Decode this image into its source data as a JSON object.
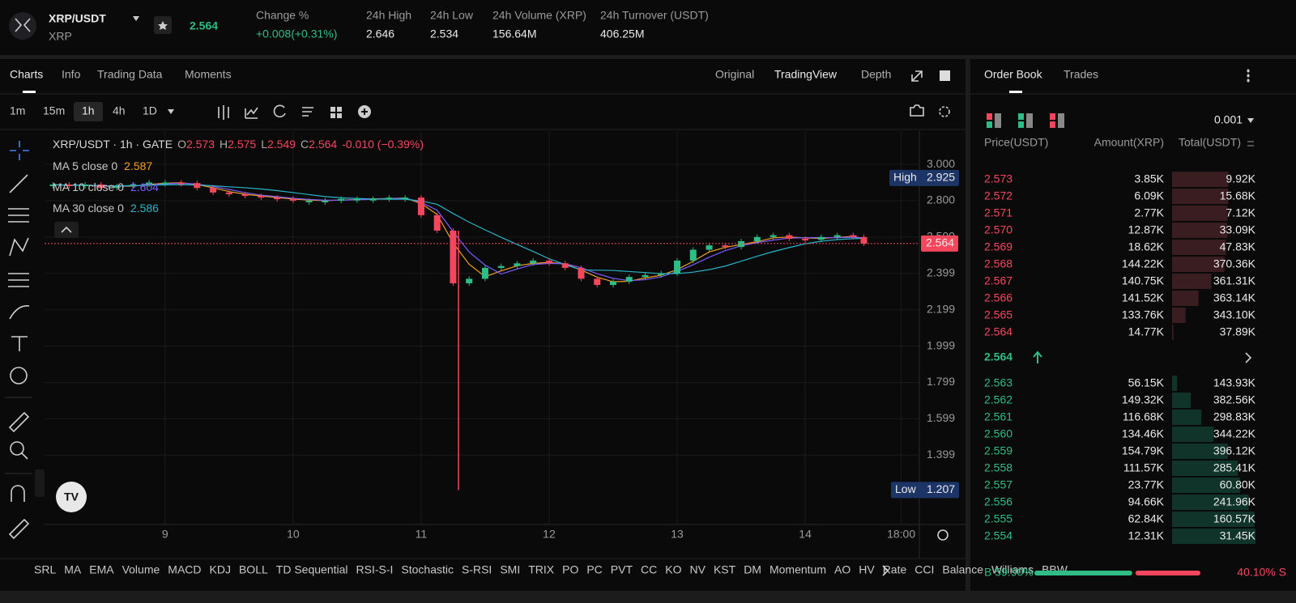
{
  "header": {
    "symbol": "XRP/USDT",
    "base": "XRP",
    "last_price": "2.564",
    "stats": [
      {
        "label": "Change %",
        "value": "+0.008(+0.31%)"
      },
      {
        "label": "24h High",
        "value": "2.646"
      },
      {
        "label": "24h Low",
        "value": "2.534"
      },
      {
        "label": "24h Volume (XRP)",
        "value": "156.64M"
      },
      {
        "label": "24h Turnover (USDT)",
        "value": "406.25M"
      }
    ]
  },
  "tabs": [
    "Charts",
    "Info",
    "Trading Data",
    "Moments"
  ],
  "views": [
    "Original",
    "TradingView",
    "Depth"
  ],
  "timeframes": [
    "1m",
    "15m",
    "1h",
    "4h",
    "1D"
  ],
  "chart_data": {
    "type": "candlestick",
    "legend": {
      "title": "XRP/USDT · 1h · GATE",
      "o": "O",
      "o_value": "2.573",
      "h": "H",
      "h_value": "2.575",
      "l": "L",
      "l_value": "2.549",
      "c": "C",
      "c_value": "2.564",
      "change": "-0.010 (−0.39%)"
    },
    "ma": [
      {
        "name": "MA 5 close 0",
        "value": "2.587",
        "color": "#f0a020"
      },
      {
        "name": "MA 10 close 0",
        "value": "2.604",
        "color": "#7b5cff"
      },
      {
        "name": "MA 30 close 0",
        "value": "2.586",
        "color": "#28b5c8"
      }
    ],
    "x": [
      -21,
      -18,
      -15,
      -12,
      -9,
      -6,
      -3,
      0,
      3,
      6,
      9,
      12,
      15,
      18,
      21,
      24,
      27,
      30,
      33,
      36,
      39,
      42,
      45,
      48,
      51,
      54,
      57,
      60,
      63,
      66,
      69,
      72,
      75,
      78,
      81,
      84,
      87,
      90,
      93,
      96,
      99,
      102,
      105,
      108,
      111,
      114,
      117,
      120,
      123,
      126,
      129,
      131
    ],
    "values": [
      2.889,
      2.88,
      2.889,
      2.87,
      2.88,
      2.889,
      2.9,
      2.9,
      2.897,
      2.87,
      2.845,
      2.835,
      2.826,
      2.817,
      2.81,
      2.8,
      2.8,
      2.8,
      2.81,
      2.81,
      2.81,
      2.817,
      2.817,
      2.72,
      2.635,
      2.345,
      2.37,
      2.43,
      2.44,
      2.455,
      2.47,
      2.455,
      2.43,
      2.37,
      2.336,
      2.354,
      2.38,
      2.39,
      2.4,
      2.47,
      2.53,
      2.554,
      2.545,
      2.577,
      2.6,
      2.61,
      2.59,
      2.585,
      2.6,
      2.61,
      2.6,
      2.564
    ],
    "up_color": "#2ebd85",
    "down_color": "#f6465d",
    "high": {
      "label": "High",
      "value": 2.925
    },
    "low": {
      "label": "Low",
      "value": 1.207,
      "x": 55
    },
    "last": {
      "value": 2.564,
      "label": "2.564"
    },
    "xlim": [
      -22.6,
      141.4
    ],
    "ylim": [
      1.017,
      3.183
    ],
    "xticks": [
      {
        "value": 0,
        "label": "9"
      },
      {
        "value": 24,
        "label": "10"
      },
      {
        "value": 48,
        "label": "11"
      },
      {
        "value": 72,
        "label": "12"
      },
      {
        "value": 96,
        "label": "13"
      },
      {
        "value": 120,
        "label": "14"
      },
      {
        "value": 138,
        "label": "18:00"
      }
    ],
    "yticks": [
      {
        "value": 3,
        "label": "3.000"
      },
      {
        "value": 2.8,
        "label": "2.800"
      },
      2.599,
      2.399,
      2.199,
      1.999,
      1.799,
      1.599,
      1.399
    ],
    "grid": true
  },
  "indicators": [
    "SRL",
    "MA",
    "EMA",
    "Volume",
    "MACD",
    "KDJ",
    "BOLL",
    "TD Sequential",
    "RSI-S-I",
    "Stochastic",
    "S-RSI",
    "SMI",
    "TRIX",
    "PO",
    "PC",
    "PVT",
    "CC",
    "KO",
    "NV",
    "KST",
    "DM",
    "Momentum",
    "AO",
    "HV",
    "Rate",
    "CCI",
    "Balance",
    "Williams",
    "BBW"
  ],
  "order_book": {
    "tabs": [
      "Order Book",
      "Trades"
    ],
    "precision": "0.001",
    "columns": [
      "Price(USDT)",
      "Amount(XRP)",
      "Total(USDT)"
    ],
    "asks": [
      [
        "2.573",
        "3.85K",
        "9.92K"
      ],
      [
        "2.572",
        "6.09K",
        "15.68K"
      ],
      [
        "2.571",
        "2.77K",
        "7.12K"
      ],
      [
        "2.570",
        "12.87K",
        "33.09K"
      ],
      [
        "2.569",
        "18.62K",
        "47.83K"
      ],
      [
        "2.568",
        "144.22K",
        "370.36K"
      ],
      [
        "2.567",
        "140.75K",
        "361.31K"
      ],
      [
        "2.566",
        "141.52K",
        "363.14K"
      ],
      [
        "2.565",
        "133.76K",
        "343.10K"
      ],
      [
        "2.564",
        "14.77K",
        "37.89K"
      ]
    ],
    "mid_price": "2.564",
    "bids": [
      [
        "2.563",
        "56.15K",
        "143.93K"
      ],
      [
        "2.562",
        "149.32K",
        "382.56K"
      ],
      [
        "2.561",
        "116.68K",
        "298.83K"
      ],
      [
        "2.560",
        "134.46K",
        "344.22K"
      ],
      [
        "2.559",
        "154.79K",
        "396.12K"
      ],
      [
        "2.558",
        "111.57K",
        "285.41K"
      ],
      [
        "2.557",
        "23.77K",
        "60.80K"
      ],
      [
        "2.556",
        "94.66K",
        "241.96K"
      ],
      [
        "2.555",
        "62.84K",
        "160.57K"
      ],
      [
        "2.554",
        "12.31K",
        "31.45K"
      ]
    ],
    "buy": {
      "value": 59.9,
      "label": "B 59.90%"
    },
    "sell": {
      "value": 40.1,
      "label": "40.10% S"
    }
  }
}
